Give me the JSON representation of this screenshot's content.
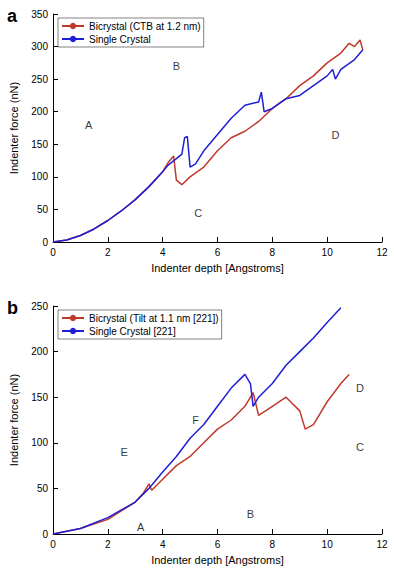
{
  "chart_data": [
    {
      "type": "line",
      "title": "a",
      "x_label": "Indenter depth [Angstroms]",
      "y_label": "Indenter force (nN)",
      "xlim": [
        0,
        12
      ],
      "xticks": [
        0,
        2,
        4,
        6,
        8,
        10,
        12
      ],
      "ylim": [
        0,
        350
      ],
      "yticks": [
        0,
        50,
        100,
        150,
        200,
        250,
        300,
        350
      ],
      "grid": false,
      "legend": "upper left",
      "series": [
        {
          "name": "Bicrystal (CTB at 1.2 nm)",
          "color": "#c0392b",
          "x": [
            0,
            0.5,
            1,
            1.5,
            2,
            2.5,
            3,
            3.5,
            4,
            4.2,
            4.4,
            4.5,
            4.7,
            5,
            5.5,
            6,
            6.5,
            7,
            7.5,
            8,
            8.5,
            9,
            9.5,
            10,
            10.5,
            10.8,
            11,
            11.2,
            11.3
          ],
          "values": [
            0,
            3,
            10,
            20,
            33,
            48,
            65,
            85,
            108,
            122,
            132,
            95,
            88,
            100,
            115,
            140,
            160,
            170,
            185,
            205,
            220,
            240,
            255,
            275,
            290,
            305,
            300,
            310,
            295
          ]
        },
        {
          "name": "Single Crystal",
          "color": "#1f1fd6",
          "x": [
            0,
            0.5,
            1,
            1.5,
            2,
            2.5,
            3,
            3.5,
            4,
            4.2,
            4.5,
            4.7,
            4.8,
            4.9,
            5,
            5.2,
            5.5,
            6,
            6.5,
            7,
            7.5,
            7.6,
            7.7,
            8,
            8.5,
            9,
            9.5,
            10,
            10.2,
            10.3,
            10.5,
            11,
            11.3
          ],
          "values": [
            0,
            3,
            10,
            20,
            33,
            48,
            65,
            85,
            108,
            118,
            128,
            135,
            160,
            162,
            115,
            120,
            140,
            165,
            190,
            210,
            215,
            230,
            200,
            205,
            220,
            225,
            240,
            255,
            265,
            250,
            265,
            280,
            295
          ]
        }
      ],
      "annotations": [
        {
          "text": "A",
          "x": 1.3,
          "y": 180
        },
        {
          "text": "B",
          "x": 4.5,
          "y": 270
        },
        {
          "text": "C",
          "x": 5.3,
          "y": 45
        },
        {
          "text": "D",
          "x": 10.3,
          "y": 165
        }
      ]
    },
    {
      "type": "line",
      "title": "b",
      "x_label": "Indenter depth [Angstroms]",
      "y_label": "Indenter force (nN)",
      "xlim": [
        0,
        12
      ],
      "xticks": [
        0,
        2,
        4,
        6,
        8,
        10,
        12
      ],
      "ylim": [
        0,
        250
      ],
      "yticks": [
        0,
        50,
        100,
        150,
        200,
        250
      ],
      "grid": false,
      "legend": "upper left",
      "series": [
        {
          "name": "Bicrystal (Tilt at 1.1 nm [221])",
          "color": "#c0392b",
          "x": [
            0,
            1,
            2,
            3,
            3.3,
            3.5,
            3.6,
            4,
            4.5,
            5,
            5.5,
            6,
            6.5,
            7,
            7.3,
            7.5,
            8,
            8.5,
            9,
            9.2,
            9.5,
            10,
            10.5,
            10.8
          ],
          "values": [
            0,
            6,
            16,
            35,
            45,
            55,
            48,
            60,
            75,
            85,
            100,
            115,
            125,
            140,
            155,
            130,
            140,
            150,
            135,
            115,
            120,
            145,
            165,
            175
          ]
        },
        {
          "name": "Single Crystal [221]",
          "color": "#1f1fd6",
          "x": [
            0,
            1,
            2,
            3,
            3.5,
            4,
            4.5,
            5,
            5.5,
            6,
            6.5,
            7,
            7.2,
            7.3,
            7.5,
            8,
            8.5,
            9,
            9.5,
            10,
            10.5
          ],
          "values": [
            0,
            6,
            18,
            35,
            50,
            68,
            85,
            105,
            120,
            140,
            160,
            175,
            165,
            140,
            150,
            165,
            185,
            200,
            215,
            232,
            248
          ]
        }
      ],
      "annotations": [
        {
          "text": "A",
          "x": 3.2,
          "y": 8
        },
        {
          "text": "B",
          "x": 7.2,
          "y": 22
        },
        {
          "text": "C",
          "x": 11.2,
          "y": 95
        },
        {
          "text": "D",
          "x": 11.2,
          "y": 160
        },
        {
          "text": "E",
          "x": 2.6,
          "y": 90
        },
        {
          "text": "F",
          "x": 5.2,
          "y": 125
        }
      ]
    }
  ]
}
